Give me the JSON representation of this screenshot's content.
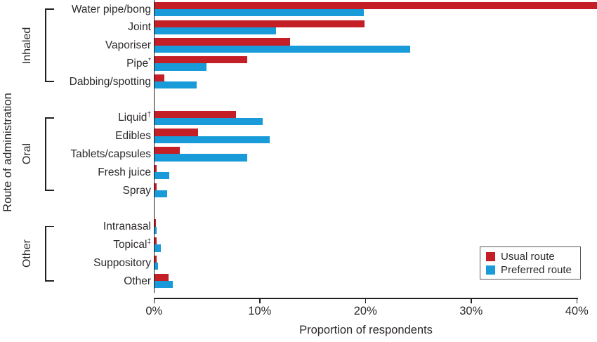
{
  "figure": {
    "y_axis_title": "Route of administration",
    "x_axis_title": "Proportion of respondents"
  },
  "chart_data": {
    "type": "bar",
    "orientation": "horizontal",
    "x_axis": {
      "ticks": [
        "0%",
        "10%",
        "20%",
        "30%",
        "40%"
      ],
      "min": 0,
      "max": 40,
      "unit": "%",
      "grid": false
    },
    "legend_position": "bottom-right",
    "series": [
      {
        "name": "Usual route",
        "color": "#c41e26"
      },
      {
        "name": "Preferred route",
        "color": "#189bd8"
      }
    ],
    "groups": [
      {
        "name": "Inhaled",
        "items": [
          {
            "label": "Water pipe/bong",
            "values": [
              41.9,
              19.8
            ]
          },
          {
            "label": "Joint",
            "values": [
              19.9,
              11.5
            ]
          },
          {
            "label": "Vaporiser",
            "values": [
              12.8,
              24.2
            ]
          },
          {
            "label": "Pipe*",
            "values": [
              8.8,
              4.9
            ]
          },
          {
            "label": "Dabbing/spotting",
            "values": [
              0.9,
              4.0
            ]
          }
        ]
      },
      {
        "name": "Oral",
        "items": [
          {
            "label": "Liquid†",
            "values": [
              7.7,
              10.2
            ]
          },
          {
            "label": "Edibles",
            "values": [
              4.1,
              10.9
            ]
          },
          {
            "label": "Tablets/capsules",
            "values": [
              2.4,
              8.8
            ]
          },
          {
            "label": "Fresh juice",
            "values": [
              0.2,
              1.4
            ]
          },
          {
            "label": "Spray",
            "values": [
              0.2,
              1.2
            ]
          }
        ]
      },
      {
        "name": "Other",
        "items": [
          {
            "label": "Intranasal",
            "values": [
              0.1,
              0.2
            ]
          },
          {
            "label": "Topical‡",
            "values": [
              0.2,
              0.6
            ]
          },
          {
            "label": "Suppository",
            "values": [
              0.2,
              0.3
            ]
          },
          {
            "label": "Other",
            "values": [
              1.3,
              1.7
            ]
          }
        ]
      }
    ]
  }
}
